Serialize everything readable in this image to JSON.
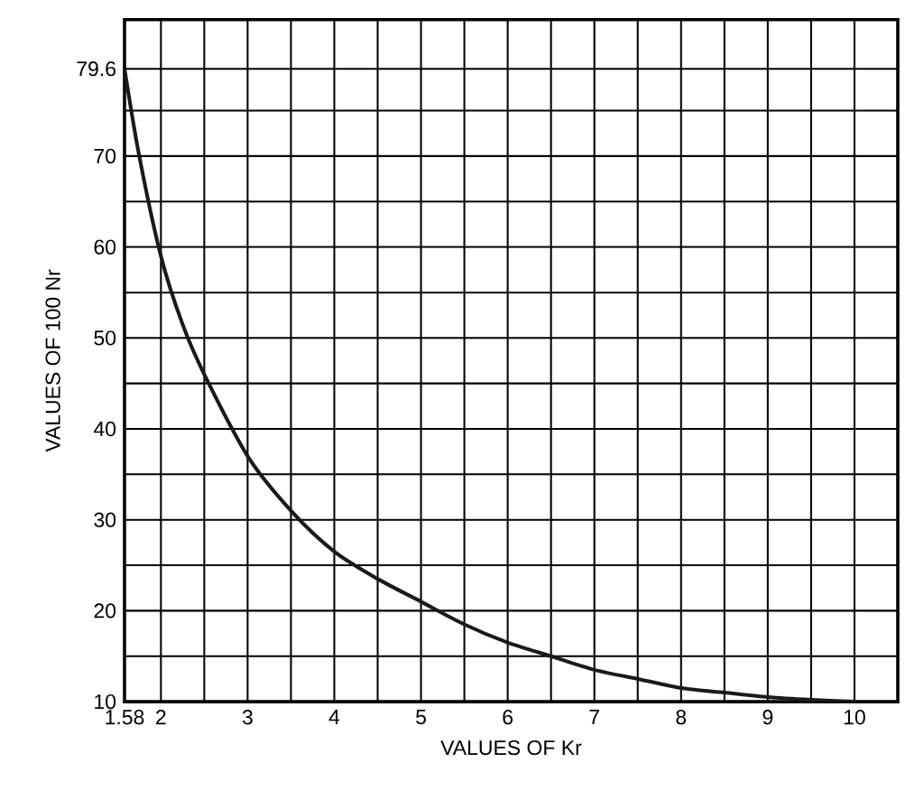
{
  "chart_data": {
    "type": "line",
    "xlabel": "VALUES OF Kr",
    "ylabel": "VALUES OF 100 Nr",
    "x": [
      1.58,
      1.75,
      2,
      2.25,
      2.5,
      3,
      3.5,
      4,
      4.5,
      5,
      5.5,
      6,
      6.5,
      7,
      7.5,
      8,
      8.5,
      9,
      9.5,
      10
    ],
    "series": [
      {
        "color": "#1a1a1a",
        "values": [
          79.6,
          70,
          59,
          51.5,
          46,
          37,
          31,
          26.5,
          23.5,
          21,
          18.5,
          16.5,
          15,
          13.5,
          12.5,
          11.5,
          11,
          10.5,
          10.2,
          10
        ]
      }
    ],
    "xlim": [
      1.58,
      10.5
    ],
    "ylim": [
      10,
      85
    ],
    "xticks": [
      1.58,
      2,
      3,
      4,
      5,
      6,
      7,
      8,
      9,
      10
    ],
    "yticks": [
      10,
      20,
      30,
      40,
      50,
      60,
      70,
      79.6
    ],
    "grid": true,
    "marker": "none",
    "line_style": "solid"
  }
}
